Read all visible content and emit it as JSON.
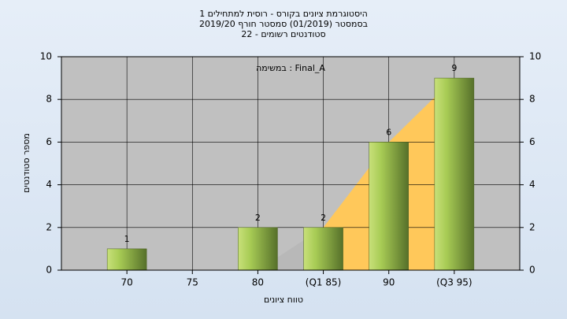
{
  "chart_data": {
    "type": "bar",
    "title": [
      "היסטוגרמת ציונים בקורס - רוסית למתחילים 1",
      "בסמסטר (01/2019) סמסטר חורף 2019/20",
      "סטודנטים רשומים - 22"
    ],
    "annotation": "במשימה : Final_A",
    "x_label": "טווח ציונים",
    "y_label": "מספר סטודנטים",
    "categories": [
      "70",
      "75",
      "80",
      "(Q1 85)",
      "90",
      "(Q3 95)"
    ],
    "values": [
      1,
      0,
      2,
      2,
      6,
      9
    ],
    "color": "#9cc44a",
    "areas": [
      {
        "color": "#b8b8b8",
        "values": [
          null,
          null,
          0,
          2,
          null,
          null
        ]
      },
      {
        "color": "#ffc85a",
        "values": [
          null,
          null,
          null,
          2,
          6,
          9
        ]
      }
    ],
    "ylim": [
      0,
      10
    ],
    "yticks": [
      0,
      2,
      4,
      6,
      8,
      10
    ],
    "y2lim": [
      0,
      10
    ],
    "y2ticks": [
      0,
      2,
      4,
      6,
      8,
      10
    ],
    "grid": true
  }
}
